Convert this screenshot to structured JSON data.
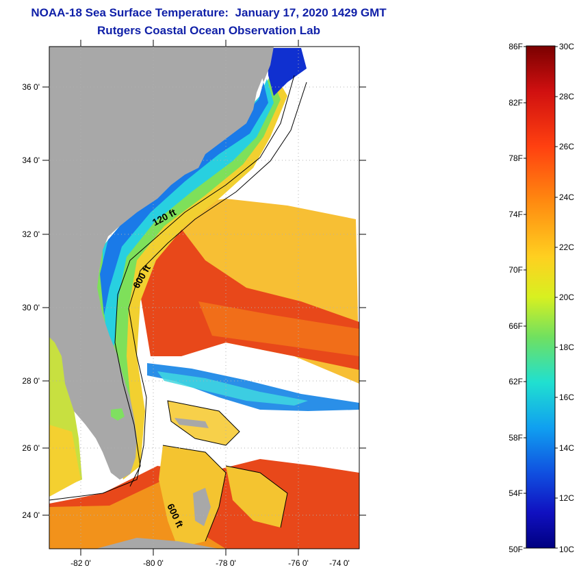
{
  "header": {
    "title": "NOAA-18 Sea Surface Temperature:  January 17, 2020 1429 GMT",
    "subtitle": "Rutgers Coastal Ocean Observation Lab"
  },
  "map": {
    "lat_labels": [
      "36 0'",
      "34 0'",
      "32 0'",
      "30 0'",
      "28 0'",
      "26 0'",
      "24 0'"
    ],
    "lon_labels": [
      "-82 0'",
      "-80 0'",
      "-78 0'",
      "-76 0'",
      "-74 0'"
    ],
    "contour_labels": {
      "c120": "120 ft",
      "c600_north": "600 ft",
      "c600_south": "600 ft"
    },
    "colors": {
      "land": "#a8a8a8",
      "gulf_stream": "#e8481a",
      "cold_shelf": "#2080e0",
      "no_data": "#ffffff"
    }
  },
  "colorbar": {
    "fahrenheit": [
      "86F",
      "82F",
      "78F",
      "74F",
      "70F",
      "66F",
      "62F",
      "58F",
      "54F",
      "50F"
    ],
    "celsius": [
      "30C",
      "28C",
      "26C",
      "24C",
      "22C",
      "20C",
      "18C",
      "16C",
      "14C",
      "12C",
      "10C"
    ],
    "gradient_colors": [
      "#7a0000",
      "#d01010",
      "#ff4010",
      "#ff8a10",
      "#ffd020",
      "#d8f020",
      "#70e060",
      "#20e0d0",
      "#10a0f0",
      "#1050e0",
      "#1010c0",
      "#000080"
    ]
  }
}
